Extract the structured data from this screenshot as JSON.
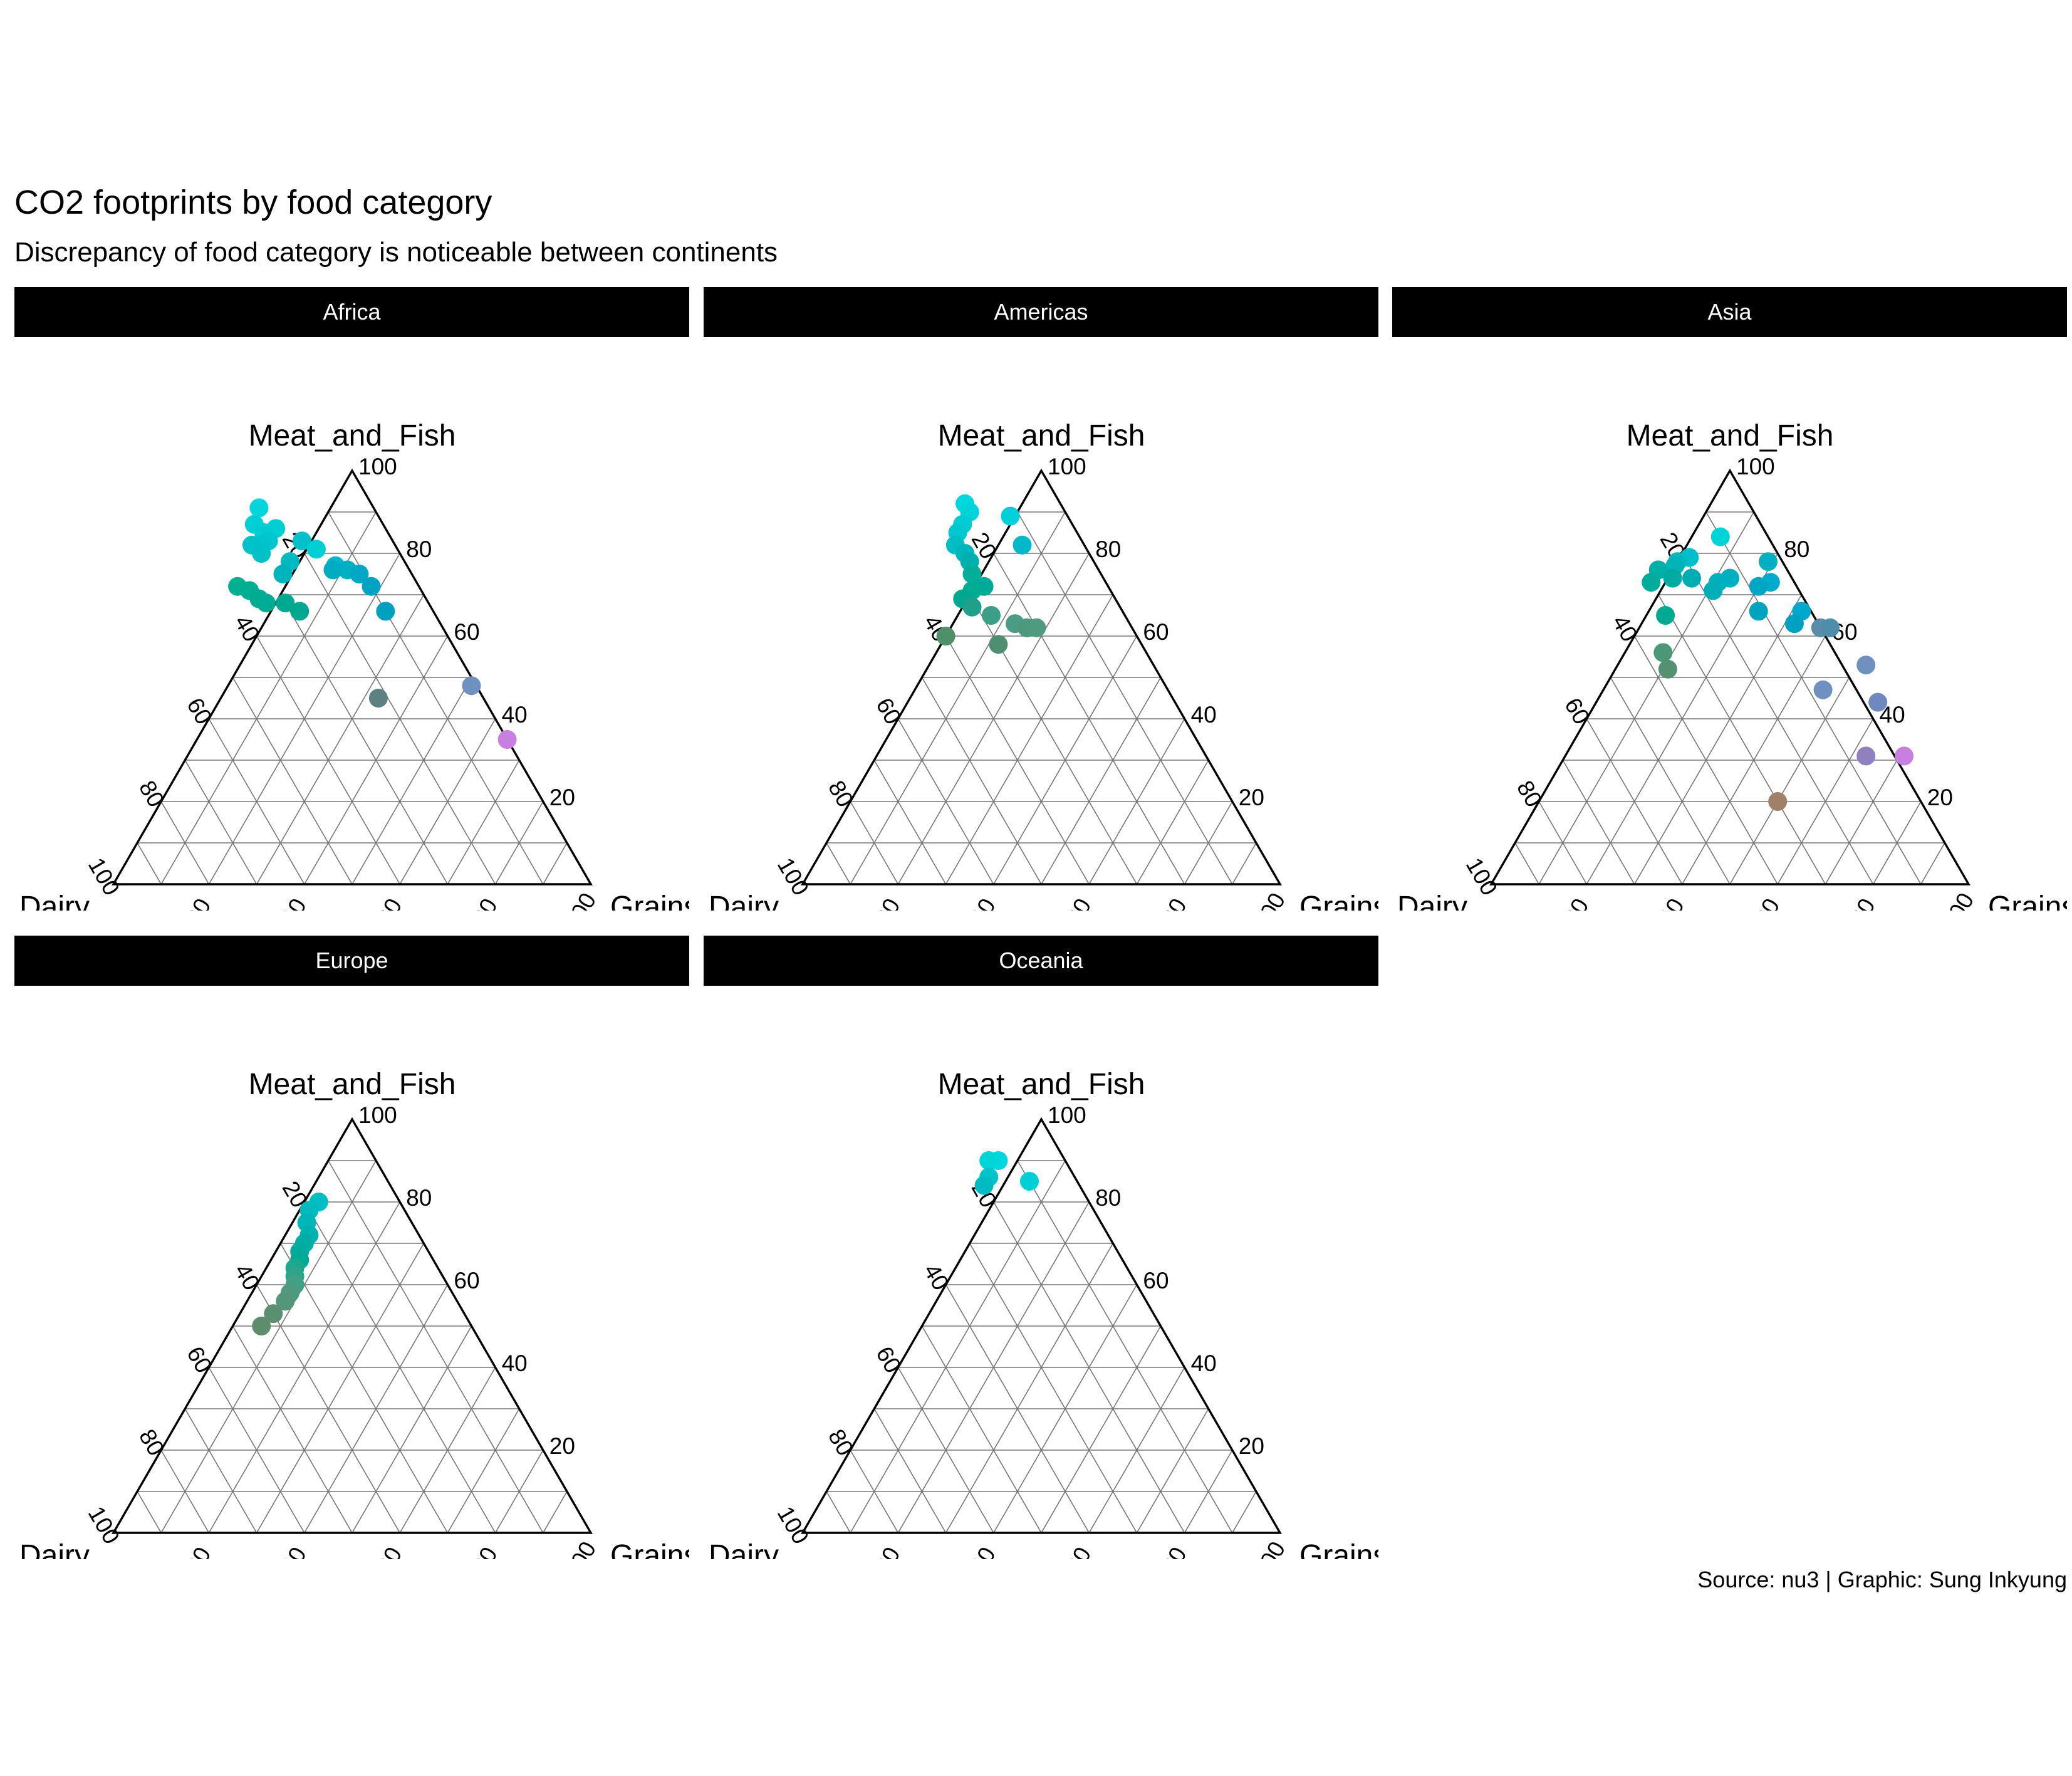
{
  "header": {
    "title": "CO2 footprints by food category",
    "subtitle": "Discrepancy of food category is noticeable between continents"
  },
  "caption": "Source: nu3 | Graphic: Sung Inkyung",
  "chart_data": {
    "type": "scatter",
    "kind": "ternary",
    "axes": {
      "left": "Dairy",
      "top": "Meat_and_Fish",
      "right": "Grains"
    },
    "ticks": [
      "20",
      "40",
      "60",
      "80",
      "100"
    ],
    "grid": true,
    "facets": [
      {
        "name": "Africa",
        "points": [
          {
            "d": 24,
            "m": 91,
            "g": -15,
            "color": "#00D6DB"
          },
          {
            "d": 27,
            "m": 87,
            "g": -14,
            "color": "#00CFD5"
          },
          {
            "d": 23,
            "m": 86,
            "g": -9,
            "color": "#00D0D4"
          },
          {
            "d": 26,
            "m": 85,
            "g": -11,
            "color": "#00CCD2"
          },
          {
            "d": 19,
            "m": 83,
            "g": -2,
            "color": "#00C0C9"
          },
          {
            "d": 26,
            "m": 83,
            "g": -9,
            "color": "#00C6CE"
          },
          {
            "d": 28,
            "m": 82,
            "g": -10,
            "color": "#00C4CD"
          },
          {
            "d": 30,
            "m": 82,
            "g": -12,
            "color": "#00C0CA"
          },
          {
            "d": 17,
            "m": 81,
            "g": 2,
            "color": "#00D0D4"
          },
          {
            "d": 29,
            "m": 80,
            "g": -9,
            "color": "#00C0C8"
          },
          {
            "d": 24,
            "m": 78,
            "g": -2,
            "color": "#00BAC2"
          },
          {
            "d": 15,
            "m": 77,
            "g": 8,
            "color": "#00B8C7"
          },
          {
            "d": 27,
            "m": 75,
            "g": -2,
            "color": "#00B4BE"
          },
          {
            "d": 13,
            "m": 76,
            "g": 11,
            "color": "#00B0C3"
          },
          {
            "d": 11,
            "m": 75,
            "g": 14,
            "color": "#00A8C4"
          },
          {
            "d": 16,
            "m": 76,
            "g": 8,
            "color": "#00ACC2"
          },
          {
            "d": 10,
            "m": 72,
            "g": 18,
            "color": "#00A2C2"
          },
          {
            "d": 38,
            "m": 72,
            "g": -10,
            "color": "#00B090"
          },
          {
            "d": 36,
            "m": 71,
            "g": -7,
            "color": "#00AE92"
          },
          {
            "d": 35,
            "m": 69,
            "g": -4,
            "color": "#00AC90"
          },
          {
            "d": 34,
            "m": 68,
            "g": -2,
            "color": "#00AC94"
          },
          {
            "d": 30,
            "m": 68,
            "g": 2,
            "color": "#00AA90"
          },
          {
            "d": 28,
            "m": 66,
            "g": 6,
            "color": "#00A890"
          },
          {
            "d": 10,
            "m": 66,
            "g": 24,
            "color": "#00A0BE"
          },
          {
            "d": 22,
            "m": 45,
            "g": 33,
            "color": "#5E8080"
          },
          {
            "d": 1,
            "m": 48,
            "g": 51,
            "color": "#7090C0"
          },
          {
            "d": 0,
            "m": 35,
            "g": 65,
            "color": "#C880E0"
          }
        ]
      },
      {
        "name": "Americas",
        "points": [
          {
            "d": 20,
            "m": 92,
            "g": -12,
            "color": "#00D8DD"
          },
          {
            "d": 12,
            "m": 89,
            "g": -1,
            "color": "#00D0D8"
          },
          {
            "d": 20,
            "m": 90,
            "g": -10,
            "color": "#00D4DA"
          },
          {
            "d": 23,
            "m": 87,
            "g": -10,
            "color": "#00CCD2"
          },
          {
            "d": 25,
            "m": 85,
            "g": -10,
            "color": "#00C8CF"
          },
          {
            "d": 13,
            "m": 82,
            "g": 5,
            "color": "#00B8C8"
          },
          {
            "d": 27,
            "m": 82,
            "g": -9,
            "color": "#00BEC4"
          },
          {
            "d": 26,
            "m": 80,
            "g": -6,
            "color": "#00B6BC"
          },
          {
            "d": 26,
            "m": 78,
            "g": -4,
            "color": "#00B0AE"
          },
          {
            "d": 27,
            "m": 75,
            "g": -2,
            "color": "#00AE9A"
          },
          {
            "d": 26,
            "m": 72,
            "g": 2,
            "color": "#00AA98"
          },
          {
            "d": 29,
            "m": 71,
            "g": 0,
            "color": "#00AC92"
          },
          {
            "d": 32,
            "m": 69,
            "g": -1,
            "color": "#00A890"
          },
          {
            "d": 31,
            "m": 67,
            "g": 2,
            "color": "#20A08A"
          },
          {
            "d": 28,
            "m": 65,
            "g": 7,
            "color": "#3C9E86"
          },
          {
            "d": 24,
            "m": 63,
            "g": 13,
            "color": "#4A9C84"
          },
          {
            "d": 22,
            "m": 62,
            "g": 16,
            "color": "#4E987E"
          },
          {
            "d": 20,
            "m": 62,
            "g": 18,
            "color": "#509A80"
          },
          {
            "d": 40,
            "m": 60,
            "g": 0,
            "color": "#509068"
          },
          {
            "d": 30,
            "m": 58,
            "g": 12,
            "color": "#508E70"
          }
        ]
      },
      {
        "name": "Asia",
        "points": [
          {
            "d": 10,
            "m": 84,
            "g": 6,
            "color": "#00D4D8"
          },
          {
            "d": 19,
            "m": 79,
            "g": 2,
            "color": "#00BECA"
          },
          {
            "d": 3,
            "m": 78,
            "g": 19,
            "color": "#00B0C2"
          },
          {
            "d": 22,
            "m": 78,
            "g": 0,
            "color": "#00B8C0"
          },
          {
            "d": 23,
            "m": 77,
            "g": 0,
            "color": "#00B4B8"
          },
          {
            "d": 27,
            "m": 76,
            "g": -3,
            "color": "#00B0A8"
          },
          {
            "d": 25,
            "m": 74,
            "g": 1,
            "color": "#00ACA2"
          },
          {
            "d": 21,
            "m": 74,
            "g": 5,
            "color": "#00AEB2"
          },
          {
            "d": 30,
            "m": 73,
            "g": -3,
            "color": "#00AC9A"
          },
          {
            "d": 13,
            "m": 74,
            "g": 13,
            "color": "#00B0C0"
          },
          {
            "d": 16,
            "m": 73,
            "g": 11,
            "color": "#00B0BE"
          },
          {
            "d": 5,
            "m": 73,
            "g": 22,
            "color": "#00AACA"
          },
          {
            "d": 8,
            "m": 72,
            "g": 20,
            "color": "#00A6C4"
          },
          {
            "d": 18,
            "m": 71,
            "g": 11,
            "color": "#00AEB8"
          },
          {
            "d": 2,
            "m": 66,
            "g": 32,
            "color": "#00A8D0"
          },
          {
            "d": 31,
            "m": 65,
            "g": 4,
            "color": "#00AA92"
          },
          {
            "d": 11,
            "m": 66,
            "g": 23,
            "color": "#00A4BE"
          },
          {
            "d": 5,
            "m": 63,
            "g": 32,
            "color": "#00A0C2"
          },
          {
            "d": 0,
            "m": 62,
            "g": 38,
            "color": "#5A8EA8"
          },
          {
            "d": -2,
            "m": 62,
            "g": 40,
            "color": "#4E8EAA"
          },
          {
            "d": -5,
            "m": 53,
            "g": 52,
            "color": "#7090C0"
          },
          {
            "d": 36,
            "m": 56,
            "g": 8,
            "color": "#4A9878"
          },
          {
            "d": 37,
            "m": 52,
            "g": 11,
            "color": "#559070"
          },
          {
            "d": 7,
            "m": 47,
            "g": 46,
            "color": "#7090C0"
          },
          {
            "d": -3,
            "m": 44,
            "g": 59,
            "color": "#7088C0"
          },
          {
            "d": 6,
            "m": 31,
            "g": 63,
            "color": "#9080C0"
          },
          {
            "d": -2,
            "m": 31,
            "g": 71,
            "color": "#C880E0"
          },
          {
            "d": 30,
            "m": 20,
            "g": 50,
            "color": "#A08068"
          }
        ]
      },
      {
        "name": "Europe",
        "points": [
          {
            "d": 17,
            "m": 80,
            "g": 3,
            "color": "#00BEC4"
          },
          {
            "d": 20,
            "m": 78,
            "g": 2,
            "color": "#00BABE"
          },
          {
            "d": 22,
            "m": 75,
            "g": 3,
            "color": "#00B6B6"
          },
          {
            "d": 23,
            "m": 72,
            "g": 5,
            "color": "#00B2AE"
          },
          {
            "d": 25,
            "m": 70,
            "g": 5,
            "color": "#00AEA6"
          },
          {
            "d": 27,
            "m": 68,
            "g": 5,
            "color": "#00AC9E"
          },
          {
            "d": 28,
            "m": 66,
            "g": 6,
            "color": "#00AA96"
          },
          {
            "d": 30,
            "m": 64,
            "g": 6,
            "color": "#1CA88E"
          },
          {
            "d": 31,
            "m": 62,
            "g": 7,
            "color": "#30A48A"
          },
          {
            "d": 32,
            "m": 60,
            "g": 8,
            "color": "#44A084"
          },
          {
            "d": 34,
            "m": 58,
            "g": 8,
            "color": "#4E9A80"
          },
          {
            "d": 36,
            "m": 56,
            "g": 8,
            "color": "#54967A"
          },
          {
            "d": 40,
            "m": 53,
            "g": 7,
            "color": "#5A9070"
          },
          {
            "d": 44,
            "m": 50,
            "g": 6,
            "color": "#5E8C6C"
          }
        ]
      },
      {
        "name": "Oceania",
        "points": [
          {
            "d": 14,
            "m": 90,
            "g": -4,
            "color": "#00D8DD"
          },
          {
            "d": 16,
            "m": 90,
            "g": -6,
            "color": "#00D6DA"
          },
          {
            "d": 18,
            "m": 86,
            "g": -4,
            "color": "#00C4CC"
          },
          {
            "d": 10,
            "m": 85,
            "g": 5,
            "color": "#00D0D6"
          },
          {
            "d": 20,
            "m": 84,
            "g": -4,
            "color": "#00BCC2"
          }
        ]
      }
    ]
  }
}
